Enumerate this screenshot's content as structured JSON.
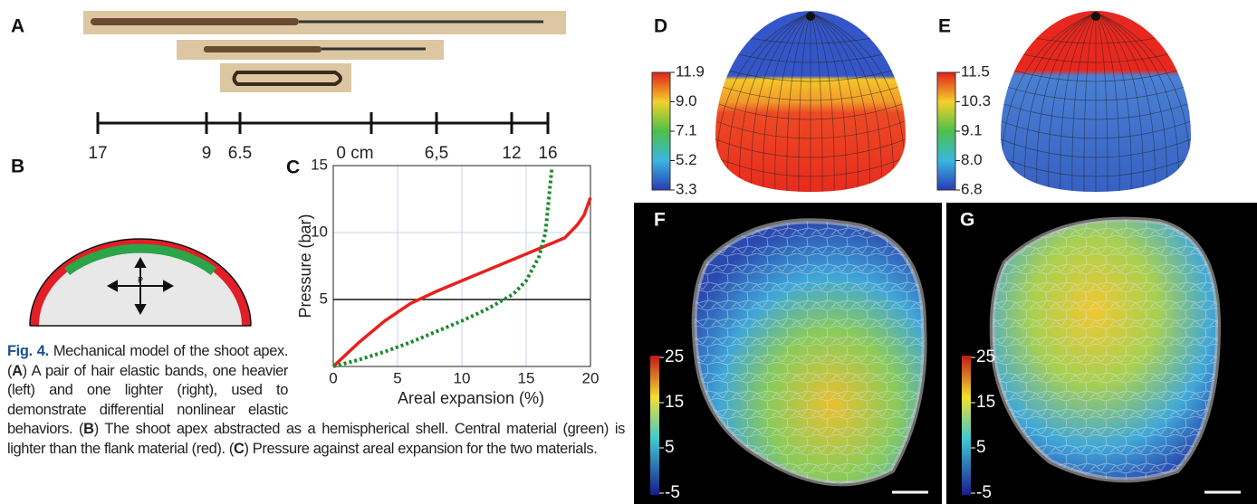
{
  "panel_labels": [
    "A",
    "B",
    "C",
    "D",
    "E",
    "F",
    "G"
  ],
  "panel_a": {
    "scale_labels": [
      "17",
      "9",
      "6.5",
      "0 cm",
      "6,5",
      "12",
      "16"
    ]
  },
  "panel_b": {
    "pressure_label": "P"
  },
  "panel_c": {
    "type": "line",
    "ylabel": "Pressure (bar)",
    "xlabel": "Areal expansion (%)",
    "xlim": [
      0,
      20
    ],
    "ylim": [
      0,
      15
    ],
    "xticks": [
      0,
      5,
      10,
      15,
      20
    ],
    "yticks": [
      5,
      10,
      15
    ],
    "grid": true,
    "hline": 5,
    "x": [
      0,
      2,
      4,
      6,
      8,
      10,
      12,
      14,
      15,
      16,
      16.5,
      17,
      18,
      19,
      19.5,
      20
    ],
    "series": [
      {
        "color": "#e8201c",
        "style": "solid",
        "values": [
          0,
          1.8,
          3.4,
          4.7,
          5.6,
          6.4,
          7.2,
          8.0,
          8.4,
          8.8,
          9.0,
          9.2,
          9.6,
          10.6,
          11.3,
          12.6
        ]
      },
      {
        "color": "#1a8a2e",
        "style": "dotted",
        "values": [
          0,
          0.5,
          1.1,
          1.8,
          2.6,
          3.4,
          4.3,
          5.4,
          6.4,
          8.2,
          10,
          14.8,
          null,
          null,
          null,
          null
        ]
      }
    ]
  },
  "colorbars": {
    "D": [
      "11.9",
      "9.0",
      "7.1",
      "5.2",
      "3.3"
    ],
    "E": [
      "11.5",
      "10.3",
      "9.1",
      "8.0",
      "6.8"
    ],
    "F": [
      "25",
      "15",
      "5",
      "-5"
    ],
    "G": [
      "25",
      "15",
      "5",
      "-5"
    ]
  },
  "caption": {
    "label": "Fig. 4.",
    "runs": [
      {
        "text": " Mechanical model of the shoot apex. ("
      },
      {
        "text": "A",
        "bold": true
      },
      {
        "text": ") A pair of hair elastic bands, one heavier (left) and one lighter (right), used to demonstrate differential nonlinear elastic behaviors. ("
      },
      {
        "text": "B",
        "bold": true
      },
      {
        "text": ") The shoot apex abstracted as a hemispherical shell. Central material (green) is lighter than the flank material (red). ("
      },
      {
        "text": "C",
        "bold": true
      },
      {
        "text": ") Pressure against areal expansion for the two materials."
      }
    ]
  }
}
